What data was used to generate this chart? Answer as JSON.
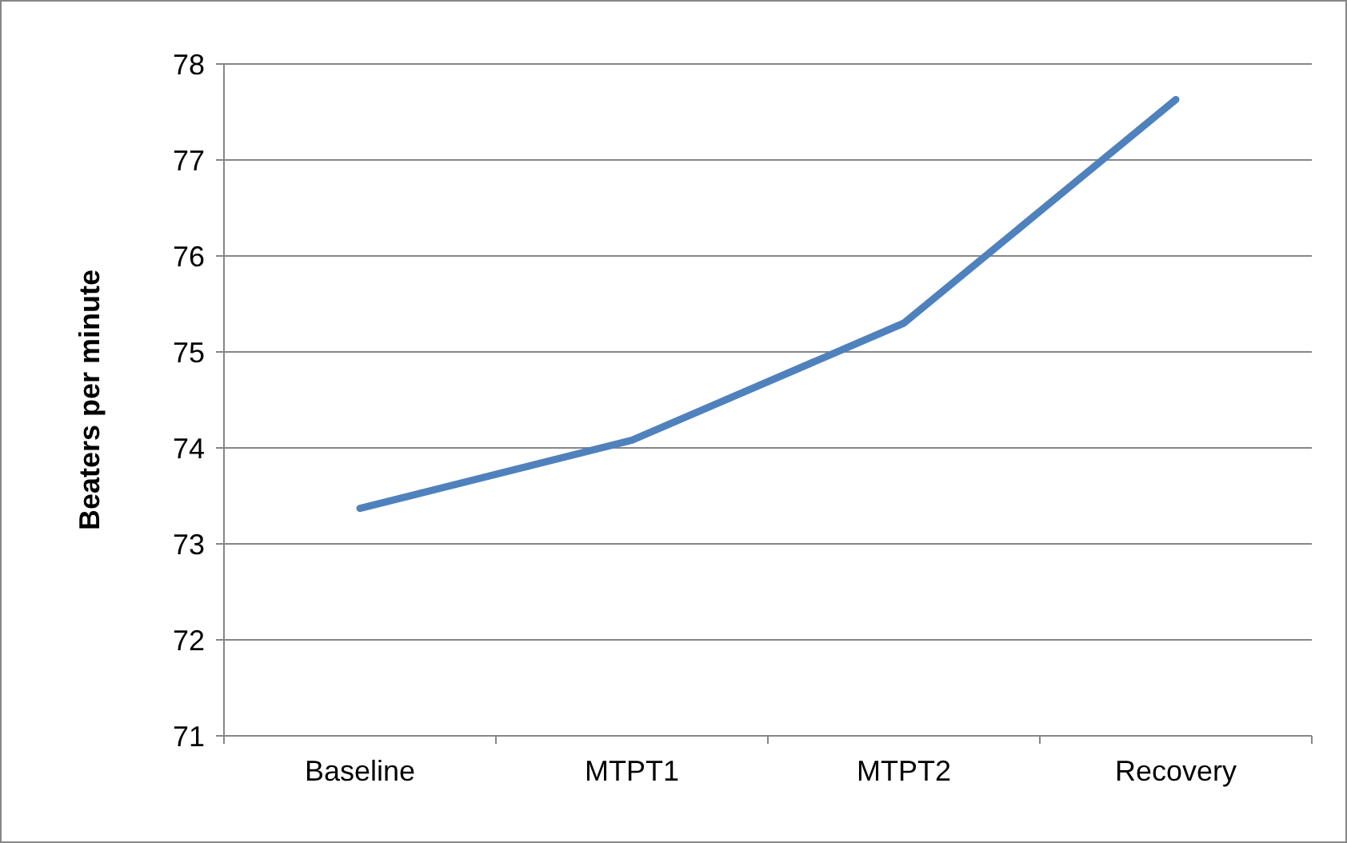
{
  "chart_data": {
    "type": "line",
    "ylabel": "Beaters per minute",
    "categories": [
      "Baseline",
      "MTPT1",
      "MTPT2",
      "Recovery"
    ],
    "series": [
      {
        "color": "#4f81bd",
        "values": [
          73.37,
          74.08,
          75.3,
          77.63
        ]
      }
    ],
    "ylim": [
      71,
      78
    ],
    "yticks": [
      71,
      72,
      73,
      74,
      75,
      76,
      77,
      78
    ],
    "grid": "y"
  }
}
